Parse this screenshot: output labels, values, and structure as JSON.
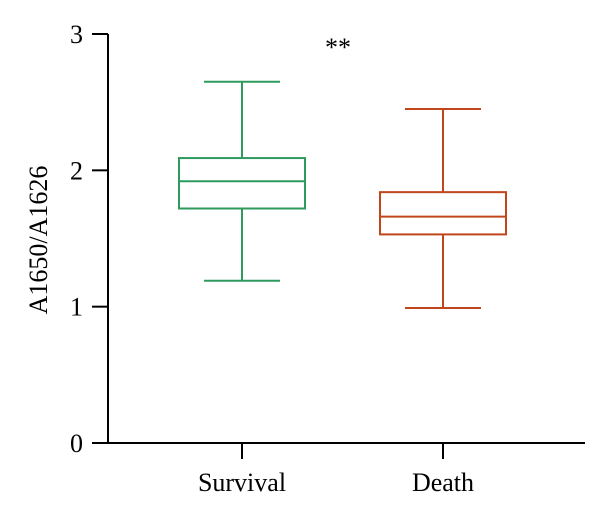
{
  "chart_data": {
    "type": "box",
    "title": "",
    "xlabel": "",
    "ylabel": "A1650/A1626",
    "ylim": [
      0,
      3
    ],
    "yticks": [
      0,
      1,
      2,
      3
    ],
    "categories": [
      "Survival",
      "Death"
    ],
    "series": [
      {
        "category": "Survival",
        "color": "#2e9a5e",
        "whisker_low": 1.19,
        "q1": 1.72,
        "median": 1.92,
        "q3": 2.09,
        "whisker_high": 2.65
      },
      {
        "category": "Death",
        "color": "#c0461b",
        "whisker_low": 0.99,
        "q1": 1.53,
        "median": 1.66,
        "q3": 1.84,
        "whisker_high": 2.45
      }
    ],
    "annotation": "**",
    "grid": false,
    "legend": "none"
  }
}
